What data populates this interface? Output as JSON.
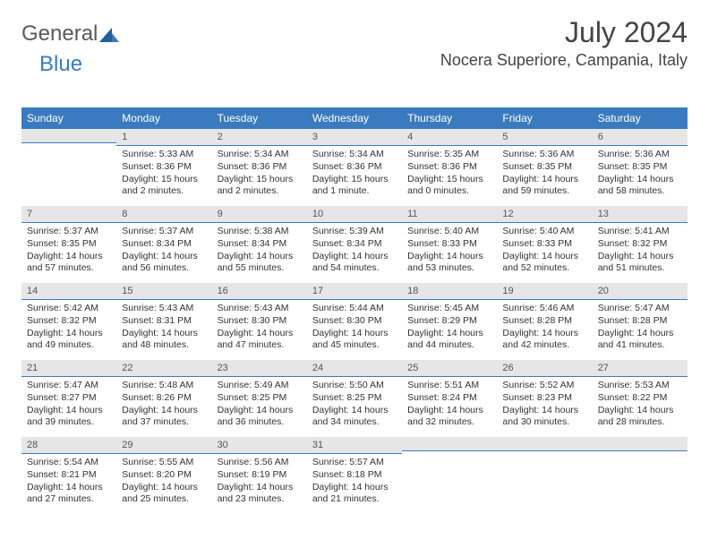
{
  "logo": {
    "text1": "General",
    "text2": "Blue"
  },
  "title": "July 2024",
  "location": "Nocera Superiore, Campania, Italy",
  "colors": {
    "header_bg": "#3a7bbf",
    "header_text": "#ffffff",
    "daynum_bg": "#e6e6e6",
    "daynum_border": "#3a7bbf",
    "body_text": "#333333",
    "title_text": "#444444"
  },
  "weekdays": [
    "Sunday",
    "Monday",
    "Tuesday",
    "Wednesday",
    "Thursday",
    "Friday",
    "Saturday"
  ],
  "weeks": [
    [
      {
        "day": "",
        "lines": []
      },
      {
        "day": "1",
        "lines": [
          "Sunrise: 5:33 AM",
          "Sunset: 8:36 PM",
          "Daylight: 15 hours and 2 minutes."
        ]
      },
      {
        "day": "2",
        "lines": [
          "Sunrise: 5:34 AM",
          "Sunset: 8:36 PM",
          "Daylight: 15 hours and 2 minutes."
        ]
      },
      {
        "day": "3",
        "lines": [
          "Sunrise: 5:34 AM",
          "Sunset: 8:36 PM",
          "Daylight: 15 hours and 1 minute."
        ]
      },
      {
        "day": "4",
        "lines": [
          "Sunrise: 5:35 AM",
          "Sunset: 8:36 PM",
          "Daylight: 15 hours and 0 minutes."
        ]
      },
      {
        "day": "5",
        "lines": [
          "Sunrise: 5:36 AM",
          "Sunset: 8:35 PM",
          "Daylight: 14 hours and 59 minutes."
        ]
      },
      {
        "day": "6",
        "lines": [
          "Sunrise: 5:36 AM",
          "Sunset: 8:35 PM",
          "Daylight: 14 hours and 58 minutes."
        ]
      }
    ],
    [
      {
        "day": "7",
        "lines": [
          "Sunrise: 5:37 AM",
          "Sunset: 8:35 PM",
          "Daylight: 14 hours and 57 minutes."
        ]
      },
      {
        "day": "8",
        "lines": [
          "Sunrise: 5:37 AM",
          "Sunset: 8:34 PM",
          "Daylight: 14 hours and 56 minutes."
        ]
      },
      {
        "day": "9",
        "lines": [
          "Sunrise: 5:38 AM",
          "Sunset: 8:34 PM",
          "Daylight: 14 hours and 55 minutes."
        ]
      },
      {
        "day": "10",
        "lines": [
          "Sunrise: 5:39 AM",
          "Sunset: 8:34 PM",
          "Daylight: 14 hours and 54 minutes."
        ]
      },
      {
        "day": "11",
        "lines": [
          "Sunrise: 5:40 AM",
          "Sunset: 8:33 PM",
          "Daylight: 14 hours and 53 minutes."
        ]
      },
      {
        "day": "12",
        "lines": [
          "Sunrise: 5:40 AM",
          "Sunset: 8:33 PM",
          "Daylight: 14 hours and 52 minutes."
        ]
      },
      {
        "day": "13",
        "lines": [
          "Sunrise: 5:41 AM",
          "Sunset: 8:32 PM",
          "Daylight: 14 hours and 51 minutes."
        ]
      }
    ],
    [
      {
        "day": "14",
        "lines": [
          "Sunrise: 5:42 AM",
          "Sunset: 8:32 PM",
          "Daylight: 14 hours and 49 minutes."
        ]
      },
      {
        "day": "15",
        "lines": [
          "Sunrise: 5:43 AM",
          "Sunset: 8:31 PM",
          "Daylight: 14 hours and 48 minutes."
        ]
      },
      {
        "day": "16",
        "lines": [
          "Sunrise: 5:43 AM",
          "Sunset: 8:30 PM",
          "Daylight: 14 hours and 47 minutes."
        ]
      },
      {
        "day": "17",
        "lines": [
          "Sunrise: 5:44 AM",
          "Sunset: 8:30 PM",
          "Daylight: 14 hours and 45 minutes."
        ]
      },
      {
        "day": "18",
        "lines": [
          "Sunrise: 5:45 AM",
          "Sunset: 8:29 PM",
          "Daylight: 14 hours and 44 minutes."
        ]
      },
      {
        "day": "19",
        "lines": [
          "Sunrise: 5:46 AM",
          "Sunset: 8:28 PM",
          "Daylight: 14 hours and 42 minutes."
        ]
      },
      {
        "day": "20",
        "lines": [
          "Sunrise: 5:47 AM",
          "Sunset: 8:28 PM",
          "Daylight: 14 hours and 41 minutes."
        ]
      }
    ],
    [
      {
        "day": "21",
        "lines": [
          "Sunrise: 5:47 AM",
          "Sunset: 8:27 PM",
          "Daylight: 14 hours and 39 minutes."
        ]
      },
      {
        "day": "22",
        "lines": [
          "Sunrise: 5:48 AM",
          "Sunset: 8:26 PM",
          "Daylight: 14 hours and 37 minutes."
        ]
      },
      {
        "day": "23",
        "lines": [
          "Sunrise: 5:49 AM",
          "Sunset: 8:25 PM",
          "Daylight: 14 hours and 36 minutes."
        ]
      },
      {
        "day": "24",
        "lines": [
          "Sunrise: 5:50 AM",
          "Sunset: 8:25 PM",
          "Daylight: 14 hours and 34 minutes."
        ]
      },
      {
        "day": "25",
        "lines": [
          "Sunrise: 5:51 AM",
          "Sunset: 8:24 PM",
          "Daylight: 14 hours and 32 minutes."
        ]
      },
      {
        "day": "26",
        "lines": [
          "Sunrise: 5:52 AM",
          "Sunset: 8:23 PM",
          "Daylight: 14 hours and 30 minutes."
        ]
      },
      {
        "day": "27",
        "lines": [
          "Sunrise: 5:53 AM",
          "Sunset: 8:22 PM",
          "Daylight: 14 hours and 28 minutes."
        ]
      }
    ],
    [
      {
        "day": "28",
        "lines": [
          "Sunrise: 5:54 AM",
          "Sunset: 8:21 PM",
          "Daylight: 14 hours and 27 minutes."
        ]
      },
      {
        "day": "29",
        "lines": [
          "Sunrise: 5:55 AM",
          "Sunset: 8:20 PM",
          "Daylight: 14 hours and 25 minutes."
        ]
      },
      {
        "day": "30",
        "lines": [
          "Sunrise: 5:56 AM",
          "Sunset: 8:19 PM",
          "Daylight: 14 hours and 23 minutes."
        ]
      },
      {
        "day": "31",
        "lines": [
          "Sunrise: 5:57 AM",
          "Sunset: 8:18 PM",
          "Daylight: 14 hours and 21 minutes."
        ]
      },
      {
        "day": "",
        "lines": []
      },
      {
        "day": "",
        "lines": []
      },
      {
        "day": "",
        "lines": []
      }
    ]
  ]
}
